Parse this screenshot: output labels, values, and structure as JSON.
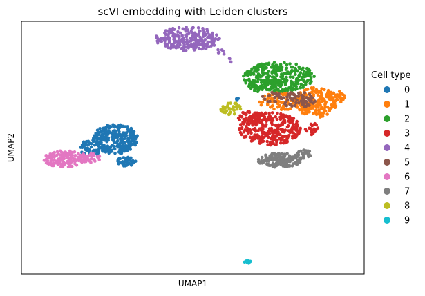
{
  "chart_data": {
    "type": "scatter",
    "title": "scVI embedding with Leiden clusters",
    "xlabel": "UMAP1",
    "ylabel": "UMAP2",
    "xlim": [
      0,
      100
    ],
    "ylim": [
      0,
      100
    ],
    "xticks": [],
    "yticks": [],
    "grid": false,
    "legend_title": "Cell type",
    "legend_position": "right",
    "series": [
      {
        "name": "0",
        "color": "#1f77b4",
        "blobs": [
          {
            "cx": 27.5,
            "cy": 53.5,
            "rx": 6.5,
            "ry": 6.0,
            "n": 260
          },
          {
            "cx": 20.5,
            "cy": 50.0,
            "rx": 4.0,
            "ry": 3.0,
            "n": 70
          },
          {
            "cx": 30.5,
            "cy": 44.5,
            "rx": 3.0,
            "ry": 1.8,
            "n": 40
          },
          {
            "cx": 62.8,
            "cy": 69.0,
            "rx": 0.6,
            "ry": 1.5,
            "n": 5
          }
        ]
      },
      {
        "name": "1",
        "color": "#ff7f0e",
        "blobs": [
          {
            "cx": 86.0,
            "cy": 68.0,
            "rx": 6.0,
            "ry": 6.0,
            "n": 170
          },
          {
            "cx": 76.0,
            "cy": 68.5,
            "rx": 7.0,
            "ry": 3.5,
            "n": 90
          },
          {
            "cx": 91.5,
            "cy": 70.0,
            "rx": 3.0,
            "ry": 2.5,
            "n": 40
          }
        ]
      },
      {
        "name": "2",
        "color": "#2ca02c",
        "blobs": [
          {
            "cx": 75.0,
            "cy": 78.0,
            "rx": 10.5,
            "ry": 5.8,
            "n": 300
          },
          {
            "cx": 70.0,
            "cy": 74.5,
            "rx": 4.0,
            "ry": 2.5,
            "n": 40
          }
        ]
      },
      {
        "name": "3",
        "color": "#d62728",
        "blobs": [
          {
            "cx": 72.5,
            "cy": 57.5,
            "rx": 9.0,
            "ry": 6.5,
            "n": 300
          },
          {
            "cx": 67.0,
            "cy": 62.0,
            "rx": 4.0,
            "ry": 2.5,
            "n": 50
          },
          {
            "cx": 84.5,
            "cy": 57.5,
            "rx": 2.0,
            "ry": 2.5,
            "n": 20
          }
        ]
      },
      {
        "name": "4",
        "color": "#9467bd",
        "blobs": [
          {
            "cx": 48.5,
            "cy": 93.0,
            "rx": 9.5,
            "ry": 4.8,
            "n": 230
          },
          {
            "cx": 58.5,
            "cy": 88.0,
            "rx": 1.5,
            "ry": 1.2,
            "n": 6
          },
          {
            "cx": 60.5,
            "cy": 84.5,
            "rx": 0.8,
            "ry": 1.0,
            "n": 3
          }
        ]
      },
      {
        "name": "5",
        "color": "#8c564b",
        "blobs": [
          {
            "cx": 80.5,
            "cy": 69.0,
            "rx": 5.5,
            "ry": 3.0,
            "n": 70
          },
          {
            "cx": 73.0,
            "cy": 70.0,
            "rx": 3.0,
            "ry": 2.0,
            "n": 20
          }
        ]
      },
      {
        "name": "6",
        "color": "#e377c2",
        "blobs": [
          {
            "cx": 12.5,
            "cy": 45.5,
            "rx": 6.0,
            "ry": 3.3,
            "n": 150
          },
          {
            "cx": 20.0,
            "cy": 46.0,
            "rx": 3.0,
            "ry": 2.0,
            "n": 30
          }
        ]
      },
      {
        "name": "7",
        "color": "#7f7f7f",
        "blobs": [
          {
            "cx": 75.5,
            "cy": 45.0,
            "rx": 6.5,
            "ry": 2.8,
            "n": 170
          },
          {
            "cx": 82.5,
            "cy": 47.5,
            "rx": 2.0,
            "ry": 1.8,
            "n": 25
          }
        ]
      },
      {
        "name": "8",
        "color": "#bcbd22",
        "blobs": [
          {
            "cx": 61.0,
            "cy": 65.5,
            "rx": 3.0,
            "ry": 2.5,
            "n": 40
          }
        ]
      },
      {
        "name": "9",
        "color": "#17becf",
        "blobs": [
          {
            "cx": 66.0,
            "cy": 4.8,
            "rx": 0.9,
            "ry": 0.7,
            "n": 10
          }
        ]
      }
    ]
  }
}
